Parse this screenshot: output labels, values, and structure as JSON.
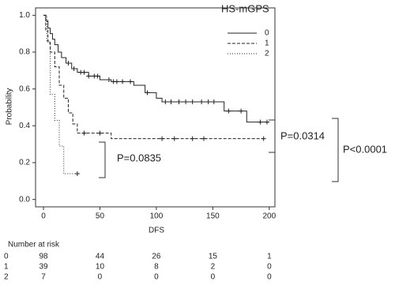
{
  "chart_data": {
    "type": "step",
    "x_label": "DFS",
    "y_label": "Probability",
    "legend_title": "HS-mGPS",
    "xlim": [
      -7,
      205
    ],
    "ylim": [
      -0.04,
      1.04
    ],
    "xticks": [
      0,
      50,
      100,
      150,
      200
    ],
    "yticks": [
      {
        "value": 0,
        "label": "0.0"
      },
      {
        "value": 0.2,
        "label": "0.2"
      },
      {
        "value": 0.4,
        "label": "0.4"
      },
      {
        "value": 0.6,
        "label": "0.6"
      },
      {
        "value": 0.8,
        "label": "0.8"
      },
      {
        "value": 1,
        "label": "1.0"
      }
    ],
    "series": [
      {
        "name": "0",
        "color": "#222",
        "dash": "none",
        "x": [
          0,
          2,
          4,
          6,
          8,
          10,
          13,
          16,
          20,
          25,
          30,
          40,
          50,
          60,
          80,
          90,
          100,
          105,
          160,
          180,
          200
        ],
        "values": [
          1,
          0.97,
          0.93,
          0.9,
          0.87,
          0.84,
          0.8,
          0.77,
          0.74,
          0.71,
          0.69,
          0.67,
          0.65,
          0.64,
          0.62,
          0.58,
          0.55,
          0.53,
          0.48,
          0.42,
          0.42
        ],
        "censor_x": [
          22,
          27,
          33,
          36,
          40,
          45,
          48,
          58,
          62,
          65,
          70,
          77,
          92,
          108,
          113,
          120,
          126,
          132,
          140,
          146,
          151,
          164,
          175,
          192,
          198
        ]
      },
      {
        "name": "1",
        "color": "#222",
        "dash": "4,2",
        "x": [
          0,
          2,
          4,
          6,
          10,
          14,
          18,
          22,
          26,
          30,
          60,
          195
        ],
        "values": [
          1,
          0.92,
          0.85,
          0.8,
          0.72,
          0.62,
          0.55,
          0.47,
          0.41,
          0.36,
          0.33,
          0.33
        ],
        "censor_x": [
          36,
          50,
          105,
          116,
          132,
          142,
          195
        ]
      },
      {
        "name": "2",
        "color": "#222",
        "dash": "1,2",
        "x": [
          0,
          3,
          6,
          10,
          14,
          18,
          30
        ],
        "values": [
          1,
          0.86,
          0.57,
          0.43,
          0.29,
          0.14,
          0.14
        ],
        "censor_x": [
          30
        ]
      }
    ],
    "annotations": [
      "P=0.0835",
      "P=0.0314",
      "P<0.0001"
    ],
    "risk_table": {
      "title": "Number at risk",
      "rows": [
        {
          "label": "0",
          "values": [
            "98",
            "44",
            "26",
            "15",
            "1"
          ]
        },
        {
          "label": "1",
          "values": [
            "39",
            "10",
            "8",
            "2",
            "0"
          ]
        },
        {
          "label": "2",
          "values": [
            "7",
            "0",
            "0",
            "0",
            "0"
          ]
        }
      ]
    }
  }
}
